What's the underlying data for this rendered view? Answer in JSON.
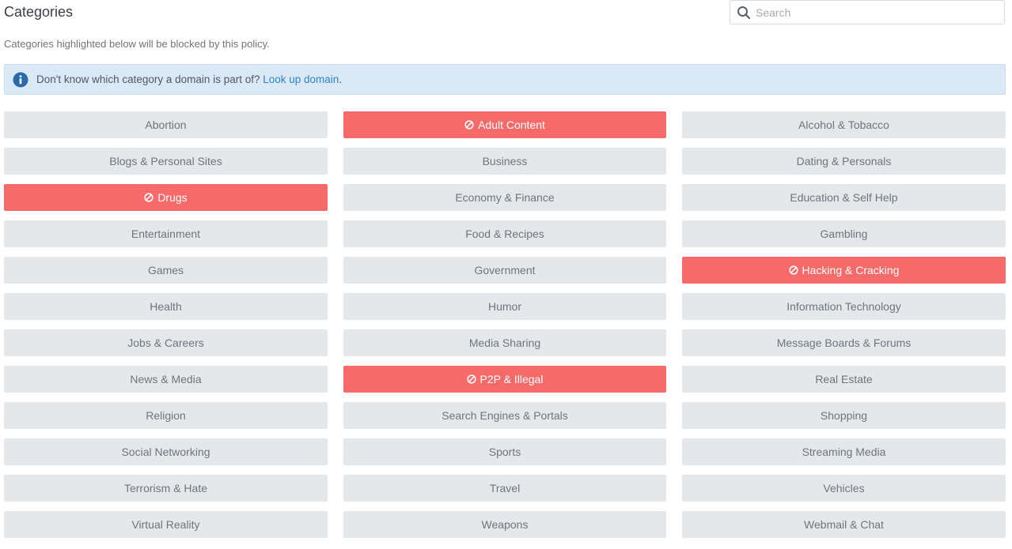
{
  "header": {
    "title": "Categories",
    "search_placeholder": "Search",
    "search_value": ""
  },
  "subtitle": "Categories highlighted below will be blocked by this policy.",
  "info": {
    "text": "Don't know which category a domain is part of? ",
    "link": "Look up domain",
    "suffix": "."
  },
  "colors": {
    "blocked": "#f76a6a",
    "unblocked": "#e4e8ea",
    "info_bg": "#dbe8f5",
    "link": "#2f86c8"
  },
  "categories": [
    {
      "label": "Abortion",
      "blocked": false
    },
    {
      "label": "Adult Content",
      "blocked": true
    },
    {
      "label": "Alcohol & Tobacco",
      "blocked": false
    },
    {
      "label": "Blogs & Personal Sites",
      "blocked": false
    },
    {
      "label": "Business",
      "blocked": false
    },
    {
      "label": "Dating & Personals",
      "blocked": false
    },
    {
      "label": "Drugs",
      "blocked": true
    },
    {
      "label": "Economy & Finance",
      "blocked": false
    },
    {
      "label": "Education & Self Help",
      "blocked": false
    },
    {
      "label": "Entertainment",
      "blocked": false
    },
    {
      "label": "Food & Recipes",
      "blocked": false
    },
    {
      "label": "Gambling",
      "blocked": false
    },
    {
      "label": "Games",
      "blocked": false
    },
    {
      "label": "Government",
      "blocked": false
    },
    {
      "label": "Hacking & Cracking",
      "blocked": true
    },
    {
      "label": "Health",
      "blocked": false
    },
    {
      "label": "Humor",
      "blocked": false
    },
    {
      "label": "Information Technology",
      "blocked": false
    },
    {
      "label": "Jobs & Careers",
      "blocked": false
    },
    {
      "label": "Media Sharing",
      "blocked": false
    },
    {
      "label": "Message Boards & Forums",
      "blocked": false
    },
    {
      "label": "News & Media",
      "blocked": false
    },
    {
      "label": "P2P & Illegal",
      "blocked": true
    },
    {
      "label": "Real Estate",
      "blocked": false
    },
    {
      "label": "Religion",
      "blocked": false
    },
    {
      "label": "Search Engines & Portals",
      "blocked": false
    },
    {
      "label": "Shopping",
      "blocked": false
    },
    {
      "label": "Social Networking",
      "blocked": false
    },
    {
      "label": "Sports",
      "blocked": false
    },
    {
      "label": "Streaming Media",
      "blocked": false
    },
    {
      "label": "Terrorism & Hate",
      "blocked": false
    },
    {
      "label": "Travel",
      "blocked": false
    },
    {
      "label": "Vehicles",
      "blocked": false
    },
    {
      "label": "Virtual Reality",
      "blocked": false
    },
    {
      "label": "Weapons",
      "blocked": false
    },
    {
      "label": "Webmail & Chat",
      "blocked": false
    }
  ]
}
